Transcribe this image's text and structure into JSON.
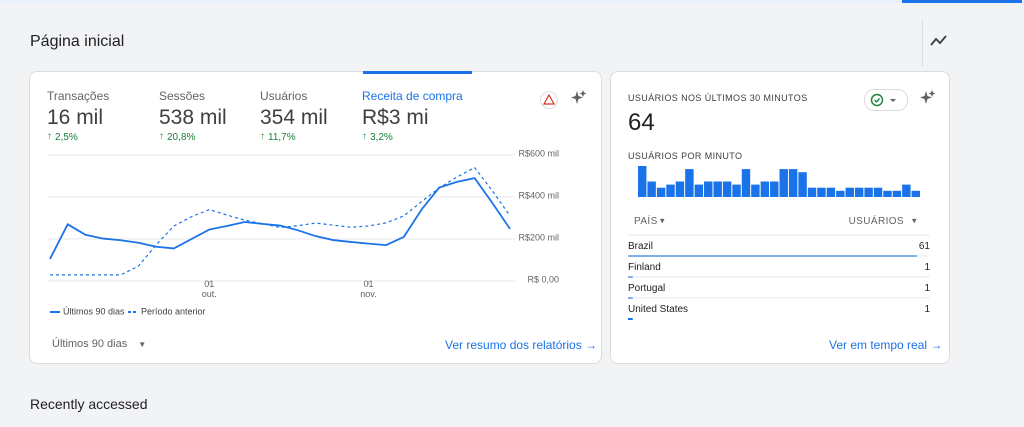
{
  "header": {
    "title": "Página inicial"
  },
  "metrics": [
    {
      "label": "Transações",
      "value": "16 mil",
      "change": "2,5%"
    },
    {
      "label": "Sessões",
      "value": "538 mil",
      "change": "20,8%"
    },
    {
      "label": "Usuários",
      "value": "354 mil",
      "change": "11,7%"
    },
    {
      "label": "Receita de compra",
      "value": "R$3 mi",
      "change": "3,2%"
    }
  ],
  "chart_data": [
    {
      "type": "line",
      "categories": [
        null,
        null,
        null,
        null,
        null,
        null,
        null,
        null,
        null,
        "01 out.",
        null,
        null,
        null,
        null,
        null,
        null,
        null,
        null,
        "01 nov.",
        null,
        null,
        null,
        null,
        null,
        null,
        null,
        null
      ],
      "series": [
        {
          "name": "Últimos 90 dias",
          "color": "#1a73e8",
          "dashed": false,
          "values": [
            105,
            270,
            220,
            202,
            194,
            182,
            163,
            155,
            200,
            245,
            262,
            281,
            272,
            264,
            242,
            214,
            195,
            186,
            178,
            171,
            210,
            340,
            445,
            472,
            490,
            372,
            248
          ]
        },
        {
          "name": "Período anterior",
          "color": "#1a73e8",
          "dashed": true,
          "values": [
            29,
            29,
            29,
            29,
            29,
            71,
            172,
            262,
            306,
            340,
            314,
            290,
            273,
            255,
            263,
            276,
            266,
            256,
            262,
            277,
            310,
            378,
            443,
            495,
            540,
            430,
            310
          ]
        }
      ],
      "ylim": [
        0,
        600
      ],
      "yticks": [
        {
          "value": 0,
          "label": "R$ 0,00"
        },
        {
          "value": 200,
          "label": "R$200 mil"
        },
        {
          "value": 400,
          "label": "R$400 mil"
        },
        {
          "value": 600,
          "label": "R$600 mil"
        }
      ],
      "grid": true
    },
    {
      "type": "bar",
      "title": "USUÁRIOS POR MINUTO",
      "color": "#1a73e8",
      "values": [
        5,
        2.5,
        1.5,
        2,
        2.5,
        4.5,
        2,
        2.5,
        2.5,
        2.5,
        2,
        4.5,
        2,
        2.5,
        2.5,
        4.5,
        4.5,
        4,
        1.5,
        1.5,
        1.5,
        1,
        1.5,
        1.5,
        1.5,
        1.5,
        1,
        1,
        2,
        1
      ]
    }
  ],
  "range_selector": "Últimos 90 dias",
  "report_link": "Ver resumo dos relatórios",
  "realtime": {
    "title": "USUÁRIOS NOS ÚLTIMOS 30 MINUTOS",
    "count": 64,
    "table": {
      "headers": [
        "PAÍS",
        "USUÁRIOS"
      ],
      "rows": [
        [
          "Brazil",
          61
        ],
        [
          "Finland",
          1
        ],
        [
          "Portugal",
          1
        ],
        [
          "United States",
          1
        ]
      ]
    },
    "link": "Ver em tempo real"
  },
  "recent": {
    "title": "Recently accessed"
  }
}
